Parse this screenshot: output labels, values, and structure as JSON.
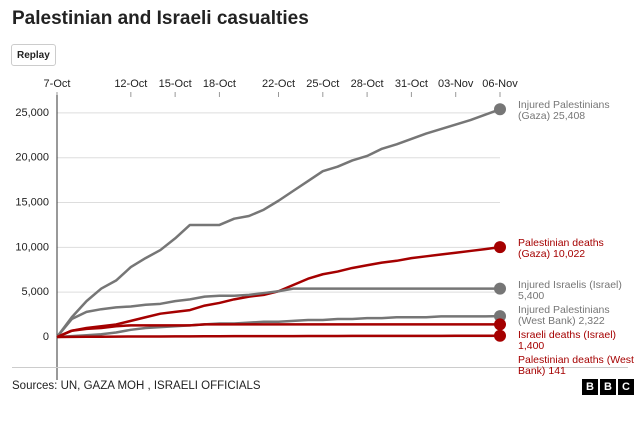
{
  "title": "Palestinian and Israeli casualties",
  "button": "Replay",
  "source": "Sources: UN, GAZA MOH , ISRAELI OFFICIALS",
  "logo": [
    "B",
    "B",
    "C"
  ],
  "chart_data": {
    "type": "line",
    "categories": [
      "7-Oct",
      null,
      null,
      null,
      null,
      "12-Oct",
      null,
      null,
      "15-Oct",
      null,
      null,
      "18-Oct",
      null,
      null,
      null,
      "22-Oct",
      null,
      null,
      "25-Oct",
      null,
      null,
      "28-Oct",
      null,
      null,
      "31-Oct",
      null,
      null,
      "03-Nov",
      null,
      null,
      "06-Nov"
    ],
    "ylim": [
      -4800,
      27000
    ],
    "yticks": [
      0,
      {
        "value": 5000,
        "label": "5,000"
      },
      {
        "value": 10000,
        "label": "10,000"
      },
      {
        "value": 15000,
        "label": "15,000"
      },
      {
        "value": 20000,
        "label": "20,000"
      },
      {
        "value": 25000,
        "label": "25,000"
      }
    ],
    "grid": true,
    "series": [
      {
        "name": "Injured Palestinians (Gaza)",
        "color": "#767676",
        "values": [
          0,
          2200,
          4000,
          5400,
          6300,
          7800,
          8800,
          9700,
          11000,
          12500,
          12500,
          12500,
          13200,
          13500,
          14200,
          15200,
          16300,
          17400,
          18500,
          19000,
          19700,
          20200,
          21000,
          21500,
          22100,
          22700,
          23200,
          23700,
          24200,
          24800,
          25408
        ],
        "value_labels": [
          null,
          null,
          null,
          null,
          null,
          null,
          null,
          null,
          null,
          null,
          null,
          null,
          null,
          null,
          null,
          null,
          null,
          null,
          null,
          null,
          null,
          null,
          null,
          null,
          null,
          null,
          null,
          null,
          null,
          null,
          "25,408"
        ]
      },
      {
        "name": "Palestinian deaths (Gaza)",
        "color": "#a50000",
        "values": [
          0,
          700,
          1000,
          1200,
          1400,
          1800,
          2200,
          2600,
          2800,
          3000,
          3500,
          3800,
          4200,
          4500,
          4700,
          5100,
          5800,
          6500,
          7000,
          7300,
          7700,
          8000,
          8300,
          8500,
          8800,
          9000,
          9200,
          9400,
          9600,
          9800,
          10022
        ],
        "value_labels": [
          null,
          null,
          null,
          null,
          null,
          null,
          null,
          null,
          null,
          null,
          null,
          null,
          null,
          null,
          null,
          null,
          null,
          null,
          null,
          null,
          null,
          null,
          null,
          null,
          null,
          null,
          null,
          null,
          null,
          null,
          "10,022"
        ]
      },
      {
        "name": "Injured Israelis (Israel)",
        "color": "#767676",
        "values": [
          0,
          2000,
          2800,
          3100,
          3300,
          3400,
          3600,
          3700,
          4000,
          4200,
          4500,
          4600,
          4600,
          4700,
          4900,
          5100,
          5400,
          5400,
          5400,
          5400,
          5400,
          5400,
          5400,
          5400,
          5400,
          5400,
          5400,
          5400,
          5400,
          5400,
          5400
        ],
        "value_labels": [
          null,
          null,
          null,
          null,
          null,
          null,
          null,
          null,
          null,
          null,
          null,
          null,
          null,
          null,
          null,
          null,
          null,
          null,
          null,
          null,
          null,
          null,
          null,
          null,
          null,
          null,
          null,
          null,
          null,
          null,
          "5,400"
        ]
      },
      {
        "name": "Injured Palestinians (West Bank)",
        "color": "#767676",
        "values": [
          0,
          100,
          200,
          300,
          500,
          800,
          1000,
          1100,
          1200,
          1300,
          1400,
          1500,
          1500,
          1600,
          1700,
          1700,
          1800,
          1900,
          1900,
          2000,
          2000,
          2100,
          2100,
          2200,
          2200,
          2200,
          2300,
          2300,
          2300,
          2300,
          2322
        ],
        "value_labels": [
          null,
          null,
          null,
          null,
          null,
          null,
          null,
          null,
          null,
          null,
          null,
          null,
          null,
          null,
          null,
          null,
          null,
          null,
          null,
          null,
          null,
          null,
          null,
          null,
          null,
          null,
          null,
          null,
          null,
          null,
          "2,322"
        ]
      },
      {
        "name": "Israeli deaths (Israel)",
        "color": "#a50000",
        "values": [
          0,
          700,
          900,
          1000,
          1200,
          1300,
          1300,
          1300,
          1300,
          1300,
          1400,
          1400,
          1400,
          1400,
          1400,
          1400,
          1400,
          1400,
          1400,
          1400,
          1400,
          1400,
          1400,
          1400,
          1400,
          1400,
          1400,
          1400,
          1400,
          1400,
          1400
        ],
        "value_labels": [
          null,
          null,
          null,
          null,
          null,
          null,
          null,
          null,
          null,
          null,
          null,
          null,
          null,
          null,
          null,
          null,
          null,
          null,
          null,
          null,
          null,
          null,
          null,
          null,
          null,
          null,
          null,
          null,
          null,
          null,
          "1,400"
        ]
      },
      {
        "name": "Palestinian deaths (West Bank)",
        "color": "#a50000",
        "values": [
          0,
          10,
          20,
          30,
          40,
          50,
          60,
          60,
          70,
          70,
          80,
          80,
          90,
          90,
          100,
          100,
          100,
          110,
          110,
          110,
          120,
          120,
          120,
          130,
          130,
          130,
          130,
          140,
          140,
          140,
          141
        ],
        "value_labels": [
          null,
          null,
          null,
          null,
          null,
          null,
          null,
          null,
          null,
          null,
          null,
          null,
          null,
          null,
          null,
          null,
          null,
          null,
          null,
          null,
          null,
          null,
          null,
          null,
          null,
          null,
          null,
          null,
          null,
          null,
          "141"
        ]
      }
    ]
  }
}
